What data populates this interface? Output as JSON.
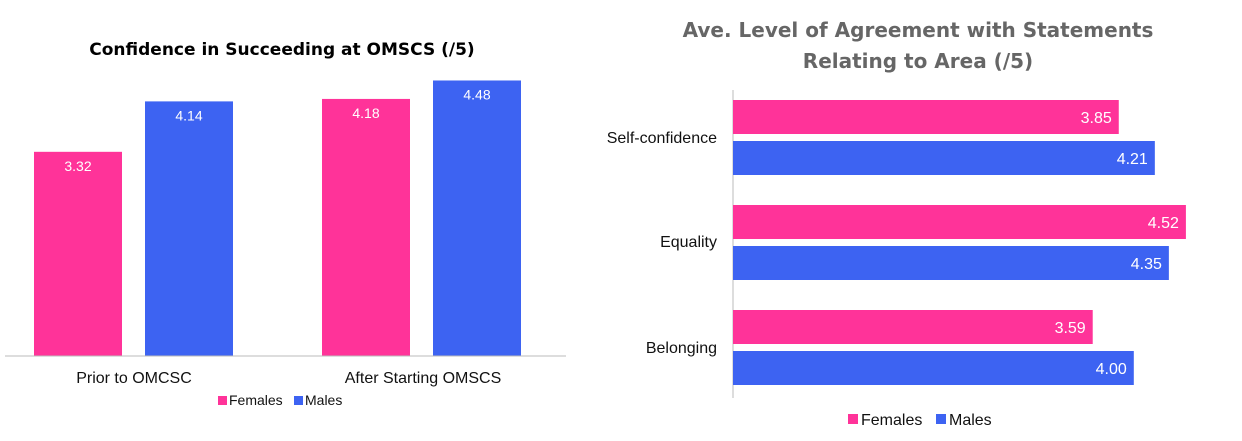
{
  "colors": {
    "females": "#FF3399",
    "males": "#3D63F2",
    "axis": "#BBBBBB",
    "title_right": "#666666"
  },
  "chart_data": [
    {
      "type": "bar",
      "title": "Confidence in Succeeding at OMSCS (/5)",
      "categories": [
        "Prior to OMCSC",
        "After Starting OMSCS"
      ],
      "series": [
        {
          "name": "Females",
          "values": [
            3.32,
            4.18
          ]
        },
        {
          "name": "Males",
          "values": [
            4.14,
            4.48
          ]
        }
      ],
      "value_labels": [
        [
          "3.32",
          "4.18"
        ],
        [
          "4.14",
          "4.48"
        ]
      ],
      "legend_position": "bottom",
      "ylim": [
        0,
        5
      ]
    },
    {
      "type": "bar",
      "orientation": "horizontal",
      "title_lines": [
        "Ave. Level of Agreement with Statements",
        "Relating to Area (/5)"
      ],
      "categories": [
        "Self-confidence",
        "Equality",
        "Belonging"
      ],
      "series": [
        {
          "name": "Females",
          "values": [
            3.85,
            4.52,
            3.59
          ]
        },
        {
          "name": "Males",
          "values": [
            4.21,
            4.35,
            4.0
          ]
        }
      ],
      "value_labels": [
        [
          "3.85",
          "4.52",
          "3.59"
        ],
        [
          "4.21",
          "4.35",
          "4.00"
        ]
      ],
      "legend_position": "bottom",
      "xlim": [
        0,
        5
      ]
    }
  ]
}
